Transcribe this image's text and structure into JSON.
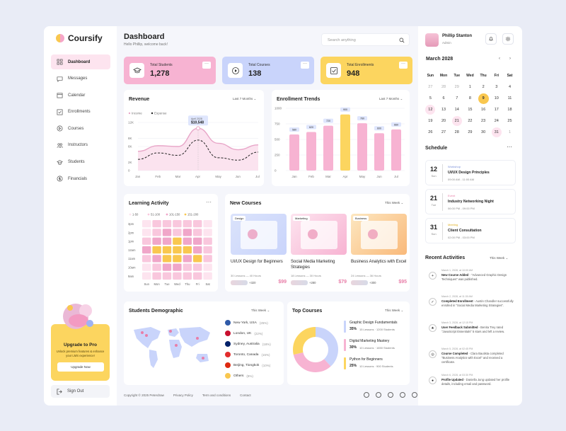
{
  "app": {
    "name": "Coursify"
  },
  "sidebar": {
    "items": [
      {
        "label": "Dashboard",
        "icon": "grid-icon",
        "active": true
      },
      {
        "label": "Messages",
        "icon": "message-icon"
      },
      {
        "label": "Calendar",
        "icon": "calendar-icon"
      },
      {
        "label": "Enrollments",
        "icon": "checkbox-icon"
      },
      {
        "label": "Courses",
        "icon": "play-icon"
      },
      {
        "label": "Instructors",
        "icon": "users-icon"
      },
      {
        "label": "Students",
        "icon": "student-icon"
      },
      {
        "label": "Financials",
        "icon": "dollar-icon"
      }
    ],
    "upgrade": {
      "title": "Upgrade to Pro",
      "text": "Unlock premium features & enhance your LMS experience!",
      "button": "Upgrade Now"
    },
    "signout": "Sign Out"
  },
  "header": {
    "title": "Dashboard",
    "subtitle": "Hello Phillip, welcome back!",
    "search_placeholder": "Search anything"
  },
  "stats": [
    {
      "label": "Total Students",
      "value": "1,278",
      "color": "#f7b3d2",
      "icon": "graduation-cap-icon"
    },
    {
      "label": "Total Courses",
      "value": "138",
      "color": "#c9d4fb",
      "icon": "play-circle-icon"
    },
    {
      "label": "Total Enrollments",
      "value": "948",
      "color": "#fcd55f",
      "icon": "check-square-icon"
    }
  ],
  "revenue": {
    "title": "Revenue",
    "range": "Last 7 Months",
    "legend": [
      "Income",
      "Expense"
    ],
    "tooltip": {
      "date": "April 2028",
      "value": "$10,548"
    }
  },
  "enrollment": {
    "title": "Enrollment Trends",
    "range": "Last 7 Months"
  },
  "learning": {
    "title": "Learning Activity",
    "legend": [
      "1-50",
      "51-100",
      "101-150",
      "151-200"
    ],
    "times": [
      "3pm",
      "2pm",
      "1pm",
      "12am",
      "11am",
      "10am",
      "9am"
    ],
    "days": [
      "Sun",
      "Mon",
      "Tue",
      "Wed",
      "Thu",
      "Fri",
      "Sat"
    ],
    "levels": [
      [
        0,
        1,
        1,
        1,
        1,
        1,
        0
      ],
      [
        0,
        1,
        2,
        1,
        2,
        1,
        0
      ],
      [
        1,
        2,
        2,
        3,
        2,
        2,
        1
      ],
      [
        2,
        3,
        3,
        3,
        3,
        2,
        1
      ],
      [
        1,
        2,
        3,
        3,
        2,
        3,
        1
      ],
      [
        0,
        1,
        2,
        2,
        1,
        1,
        0
      ],
      [
        0,
        1,
        1,
        1,
        1,
        1,
        0
      ]
    ],
    "colors": [
      "#fde4ef",
      "#f9c7dd",
      "#f0a6c9",
      "#f9c74f"
    ]
  },
  "new_courses": {
    "title": "New Courses",
    "range": "This Week",
    "items": [
      {
        "tag": "Design",
        "name": "UI/UX Design for Beginners",
        "meta": "30 Lessons — 40 Hours",
        "extra": "+320",
        "price": "$99"
      },
      {
        "tag": "Marketing",
        "name": "Social Media Marketing Strategies",
        "meta": "18 Lessons — 30 Hours",
        "extra": "+280",
        "price": "$79"
      },
      {
        "tag": "Business",
        "name": "Business Analytics with Excel",
        "meta": "24 Lessons — 36 Hours",
        "extra": "+300",
        "price": "$95"
      }
    ]
  },
  "demographic": {
    "title": "Students Demographic",
    "range": "This Week",
    "items": [
      {
        "name": "New York, USA",
        "pct": "(25%)",
        "flag": "#2f5aa8"
      },
      {
        "name": "London, UK",
        "pct": "(22%)",
        "flag": "#c8102e"
      },
      {
        "name": "Sydney, Australia",
        "pct": "(18%)",
        "flag": "#012169"
      },
      {
        "name": "Toronto, Canada",
        "pct": "(15%)",
        "flag": "#e22d2d"
      },
      {
        "name": "Beijing, Tiongkok",
        "pct": "(10%)",
        "flag": "#de2910"
      },
      {
        "name": "Others",
        "pct": "(8%)",
        "flag": "#f9c74f"
      }
    ]
  },
  "top_courses": {
    "title": "Top Courses",
    "range": "This Week",
    "items": [
      {
        "name": "Graphic Design Fundamentals",
        "pct": "35%",
        "meta": "15 Lessons · 1200 Students",
        "color": "#c9d4fb"
      },
      {
        "name": "Digital Marketing Mastery",
        "pct": "30%",
        "meta": "10 Lessons · 1650 Students",
        "color": "#f7b3d2"
      },
      {
        "name": "Python for Beginners",
        "pct": "25%",
        "meta": "10 Lessons · 900 Students",
        "color": "#fcd55f"
      }
    ]
  },
  "footer": {
    "copyright": "Copyright © 2025 Peterdraw",
    "links": [
      "Privacy Policy",
      "Term and conditions",
      "Contact"
    ]
  },
  "user": {
    "name": "Phillip Stanton",
    "role": "Admin"
  },
  "calendar": {
    "month": "March 2028",
    "weekdays": [
      "Sun",
      "Mon",
      "Tue",
      "Wed",
      "Thu",
      "Fri",
      "Sat"
    ],
    "weeks": [
      [
        "27",
        "28",
        "29",
        "1",
        "2",
        "3",
        "4"
      ],
      [
        "5",
        "6",
        "7",
        "8",
        "9",
        "10",
        "11"
      ],
      [
        "12",
        "13",
        "14",
        "15",
        "16",
        "17",
        "18"
      ],
      [
        "19",
        "20",
        "21",
        "22",
        "23",
        "24",
        "25"
      ],
      [
        "26",
        "27",
        "28",
        "29",
        "30",
        "31",
        "1"
      ]
    ]
  },
  "schedule": {
    "title": "Schedule",
    "items": [
      {
        "day": "12",
        "dow": "Sun",
        "cat": "Workshop",
        "name": "UI/UX Design Principles",
        "time": "09:00 AM - 11:00 AM",
        "color": "#7a8fd8"
      },
      {
        "day": "21",
        "dow": "Tue",
        "cat": "Event",
        "name": "Industry Networking Night",
        "time": "06:00 PM - 09:00 PM",
        "color": "#e87ea8"
      },
      {
        "day": "31",
        "dow": "Sun",
        "cat": "Meeting",
        "name": "Client Consultation",
        "time": "02:00 PM - 03:00 PM",
        "color": "#e0b020"
      }
    ]
  },
  "activities": {
    "title": "Recent Activities",
    "range": "This Week",
    "items": [
      {
        "time": "March 1, 2028, at 10:00 AM",
        "head": "New Course Added",
        "text": " - \"Advanced Graphic Design Techniques\" was published.",
        "icon": "add-icon"
      },
      {
        "time": "March 2, 2028, at 11:30 AM",
        "head": "Completed Enrollment",
        "text": " - Austin Chandler successfully enrolled in \"Social Media Marketing Strategies\".",
        "icon": "check-icon"
      },
      {
        "time": "March 3, 2028, at 12:15 PM",
        "head": "User Feedback Submitted",
        "text": " - Benita Trey rated \"JavaScript Essentials\" 5 stars and left a review.",
        "icon": "star-icon"
      },
      {
        "time": "March 5, 2028, at 02:45 PM",
        "head": "Course Completed",
        "text": " - Clara Bautista completed \"Business Analytics with Excel\" and received a certificate.",
        "icon": "badge-icon"
      },
      {
        "time": "March 6, 2028, at 03:30 PM",
        "head": "Profile Updated",
        "text": " - Daniella Jung updated her profile details, including email and password.",
        "icon": "user-icon"
      }
    ]
  },
  "chart_data": [
    {
      "type": "line",
      "title": "Revenue",
      "categories": [
        "Jan",
        "Feb",
        "Mar",
        "Apr",
        "May",
        "Jun",
        "Jul"
      ],
      "ylim": [
        0,
        12000
      ],
      "yticks": [
        "0",
        "2K",
        "6K",
        "8K",
        "12K"
      ],
      "series": [
        {
          "name": "Income",
          "values": [
            4800,
            6200,
            6000,
            10548,
            6800,
            5200,
            6400
          ],
          "color": "#e8a6c8"
        },
        {
          "name": "Expense",
          "values": [
            2800,
            4400,
            3800,
            7600,
            3200,
            2600,
            4600
          ],
          "color": "#222222"
        }
      ]
    },
    {
      "type": "bar",
      "title": "Enrollment Trends",
      "categories": [
        "Jan",
        "Feb",
        "Mar",
        "Apr",
        "May",
        "Jun",
        "Jul"
      ],
      "ylim": [
        0,
        1000
      ],
      "yticks": [
        "0",
        "250",
        "500",
        "750",
        "1000"
      ],
      "values": [
        580,
        620,
        720,
        900,
        760,
        600,
        660
      ],
      "labels": [
        "580",
        "620",
        "720",
        "900",
        "760",
        "600",
        "660"
      ],
      "highlight_index": 3,
      "colors": {
        "normal": "#f7b3d2",
        "highlight": "#fcd55f"
      }
    }
  ]
}
